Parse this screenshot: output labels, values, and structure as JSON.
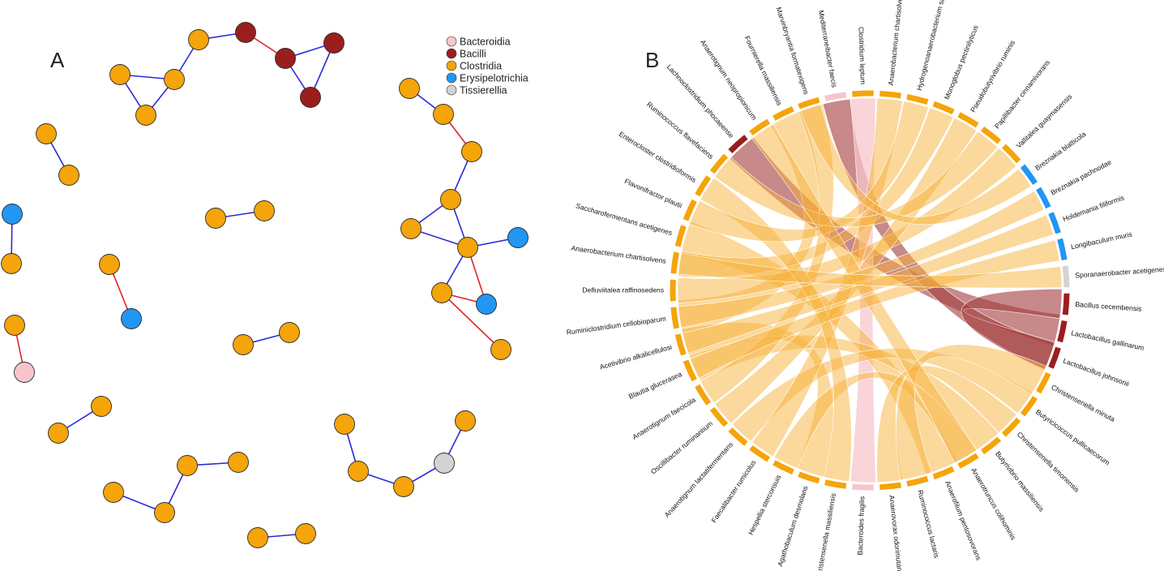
{
  "panels": {
    "a_label": "A",
    "b_label": "B"
  },
  "colors": {
    "Bacteroidia": "#F7C6CC",
    "Bacilli": "#9B1E1E",
    "Clostridia": "#F5A40A",
    "Erysipelotrichia": "#2196F3",
    "Tissierellia": "#D3D3D3",
    "edge_positive": "#2B2BD6",
    "edge_negative": "#E02424"
  },
  "legend": [
    {
      "name": "Bacteroidia",
      "color": "#F7C6CC"
    },
    {
      "name": "Bacilli",
      "color": "#9B1E1E"
    },
    {
      "name": "Clostridia",
      "color": "#F5A40A"
    },
    {
      "name": "Erysipelotrichia",
      "color": "#2196F3"
    },
    {
      "name": "Tissierellia",
      "color": "#D3D3D3"
    }
  ],
  "network": {
    "nodes": [
      {
        "id": "n1",
        "cls": "Clostridia"
      },
      {
        "id": "n2",
        "cls": "Bacilli"
      },
      {
        "id": "n3",
        "cls": "Clostridia"
      },
      {
        "id": "n4",
        "cls": "Clostridia"
      },
      {
        "id": "n5",
        "cls": "Clostridia"
      },
      {
        "id": "n6",
        "cls": "Bacilli"
      },
      {
        "id": "n7",
        "cls": "Bacilli"
      },
      {
        "id": "n8",
        "cls": "Bacilli"
      },
      {
        "id": "n9",
        "cls": "Clostridia"
      },
      {
        "id": "n10",
        "cls": "Clostridia"
      },
      {
        "id": "n11",
        "cls": "Erysipelotrichia"
      },
      {
        "id": "n12",
        "cls": "Clostridia"
      },
      {
        "id": "n13",
        "cls": "Clostridia"
      },
      {
        "id": "n14",
        "cls": "Clostridia"
      },
      {
        "id": "n15",
        "cls": "Clostridia"
      },
      {
        "id": "n16",
        "cls": "Erysipelotrichia"
      },
      {
        "id": "n17",
        "cls": "Clostridia"
      },
      {
        "id": "n18",
        "cls": "Bacteroidia"
      },
      {
        "id": "n19",
        "cls": "Clostridia"
      },
      {
        "id": "n20",
        "cls": "Clostridia"
      },
      {
        "id": "n21",
        "cls": "Clostridia"
      },
      {
        "id": "n22",
        "cls": "Clostridia"
      },
      {
        "id": "n23",
        "cls": "Clostridia"
      },
      {
        "id": "n24",
        "cls": "Clostridia"
      },
      {
        "id": "n25",
        "cls": "Clostridia"
      },
      {
        "id": "n26",
        "cls": "Clostridia"
      },
      {
        "id": "n27",
        "cls": "Clostridia"
      },
      {
        "id": "n28",
        "cls": "Clostridia"
      },
      {
        "id": "n29",
        "cls": "Clostridia"
      },
      {
        "id": "n30",
        "cls": "Clostridia"
      },
      {
        "id": "n31",
        "cls": "Clostridia"
      },
      {
        "id": "n32",
        "cls": "Clostridia"
      },
      {
        "id": "n33",
        "cls": "Clostridia"
      },
      {
        "id": "n34",
        "cls": "Clostridia"
      },
      {
        "id": "n35",
        "cls": "Erysipelotrichia"
      },
      {
        "id": "n36",
        "cls": "Clostridia"
      },
      {
        "id": "n37",
        "cls": "Erysipelotrichia"
      },
      {
        "id": "n38",
        "cls": "Clostridia"
      },
      {
        "id": "n39",
        "cls": "Clostridia"
      },
      {
        "id": "n40",
        "cls": "Clostridia"
      },
      {
        "id": "n41",
        "cls": "Clostridia"
      },
      {
        "id": "n42",
        "cls": "Tissierellia"
      },
      {
        "id": "n43",
        "cls": "Clostridia"
      }
    ],
    "edges": [
      {
        "s": "n1",
        "t": "n2",
        "sign": "positive"
      },
      {
        "s": "n1",
        "t": "n5",
        "sign": "positive"
      },
      {
        "s": "n2",
        "t": "n6",
        "sign": "negative"
      },
      {
        "s": "n3",
        "t": "n4",
        "sign": "positive"
      },
      {
        "s": "n3",
        "t": "n5",
        "sign": "positive"
      },
      {
        "s": "n4",
        "t": "n5",
        "sign": "positive"
      },
      {
        "s": "n6",
        "t": "n7",
        "sign": "positive"
      },
      {
        "s": "n6",
        "t": "n8",
        "sign": "positive"
      },
      {
        "s": "n7",
        "t": "n8",
        "sign": "positive"
      },
      {
        "s": "n9",
        "t": "n10",
        "sign": "positive"
      },
      {
        "s": "n11",
        "t": "n12",
        "sign": "positive"
      },
      {
        "s": "n13",
        "t": "n14",
        "sign": "positive"
      },
      {
        "s": "n15",
        "t": "n16",
        "sign": "negative"
      },
      {
        "s": "n17",
        "t": "n18",
        "sign": "negative"
      },
      {
        "s": "n19",
        "t": "n20",
        "sign": "positive"
      },
      {
        "s": "n21",
        "t": "n22",
        "sign": "positive"
      },
      {
        "s": "n23",
        "t": "n24",
        "sign": "positive"
      },
      {
        "s": "n24",
        "t": "n25",
        "sign": "positive"
      },
      {
        "s": "n25",
        "t": "n26",
        "sign": "positive"
      },
      {
        "s": "n27",
        "t": "n28",
        "sign": "positive"
      },
      {
        "s": "n29",
        "t": "n30",
        "sign": "positive"
      },
      {
        "s": "n30",
        "t": "n31",
        "sign": "negative"
      },
      {
        "s": "n31",
        "t": "n32",
        "sign": "positive"
      },
      {
        "s": "n32",
        "t": "n33",
        "sign": "positive"
      },
      {
        "s": "n32",
        "t": "n34",
        "sign": "positive"
      },
      {
        "s": "n33",
        "t": "n34",
        "sign": "positive"
      },
      {
        "s": "n34",
        "t": "n35",
        "sign": "positive"
      },
      {
        "s": "n34",
        "t": "n36",
        "sign": "positive"
      },
      {
        "s": "n34",
        "t": "n37",
        "sign": "negative"
      },
      {
        "s": "n36",
        "t": "n37",
        "sign": "negative"
      },
      {
        "s": "n36",
        "t": "n38",
        "sign": "negative"
      },
      {
        "s": "n39",
        "t": "n40",
        "sign": "positive"
      },
      {
        "s": "n40",
        "t": "n41",
        "sign": "positive"
      },
      {
        "s": "n41",
        "t": "n42",
        "sign": "positive"
      },
      {
        "s": "n42",
        "t": "n43",
        "sign": "positive"
      }
    ]
  },
  "chord": {
    "species": [
      {
        "name": "Bacillus cecembensis",
        "cls": "Bacilli"
      },
      {
        "name": "Lactobacillus gallinarum",
        "cls": "Bacilli"
      },
      {
        "name": "Lactobacillus johnsonii",
        "cls": "Bacilli"
      },
      {
        "name": "Christensenella minuta",
        "cls": "Clostridia"
      },
      {
        "name": "Butyricicoccus pullicaecorum",
        "cls": "Clostridia"
      },
      {
        "name": "Christensenella timonensis",
        "cls": "Clostridia"
      },
      {
        "name": "Butyrivibrio massiliensis",
        "cls": "Clostridia"
      },
      {
        "name": "Anaerotruncus colihominis",
        "cls": "Clostridia"
      },
      {
        "name": "Anaerofilum pentosovorans",
        "cls": "Clostridia"
      },
      {
        "name": "Ruminococcus lactaris",
        "cls": "Clostridia"
      },
      {
        "name": "Anaerovorax odorimutans",
        "cls": "Clostridia"
      },
      {
        "name": "Bacteroides fragilis",
        "cls": "Bacteroidia"
      },
      {
        "name": "Christensenella massiliensis",
        "cls": "Clostridia"
      },
      {
        "name": "Agathobaculum desmolans",
        "cls": "Clostridia"
      },
      {
        "name": "Hespellia stercorisuis",
        "cls": "Clostridia"
      },
      {
        "name": "Faecalibacter rumicolus",
        "cls": "Clostridia"
      },
      {
        "name": "Anaerotignum lactatifermentans",
        "cls": "Clostridia"
      },
      {
        "name": "Oscillibacter ruminantium",
        "cls": "Clostridia"
      },
      {
        "name": "Anaerotignum faecicola",
        "cls": "Clostridia"
      },
      {
        "name": "Blautia glucerasea",
        "cls": "Clostridia"
      },
      {
        "name": "Acetivibrio alkalicellulosi",
        "cls": "Clostridia"
      },
      {
        "name": "Ruminiclostridium cellobioparum",
        "cls": "Clostridia"
      },
      {
        "name": "Defluviitalea raffinosedens",
        "cls": "Clostridia"
      },
      {
        "name": "Anaerobacterium chartisolvens",
        "cls": "Clostridia"
      },
      {
        "name": "Saccharofermentans acetigenes",
        "cls": "Clostridia"
      },
      {
        "name": "Flavonifractor plautii",
        "cls": "Clostridia"
      },
      {
        "name": "Enterocloster clostridioformis",
        "cls": "Clostridia"
      },
      {
        "name": "Ruminococcus flavefaciens",
        "cls": "Clostridia"
      },
      {
        "name": "Lachnoclostridium phocaeense",
        "cls": "Bacilli"
      },
      {
        "name": "Anaerotignum neopropionicum",
        "cls": "Clostridia"
      },
      {
        "name": "Fournierella massiliensis",
        "cls": "Clostridia"
      },
      {
        "name": "Marvinbryantia formatexigens",
        "cls": "Clostridia"
      },
      {
        "name": "Mediterraneibacter faecis",
        "cls": "Bacteroidia"
      },
      {
        "name": "Clostridium leptum",
        "cls": "Clostridia"
      },
      {
        "name": "Anaerobacterium chartisolvens",
        "cls": "Clostridia"
      },
      {
        "name": "Hydrogenoanaerobacterium saccharovorans",
        "cls": "Clostridia"
      },
      {
        "name": "Monoglobus pectinilyticus",
        "cls": "Clostridia"
      },
      {
        "name": "Pseudobutyrivibrio ruminis",
        "cls": "Clostridia"
      },
      {
        "name": "Papillibacter cinnamivorans",
        "cls": "Clostridia"
      },
      {
        "name": "Vallitalea guaymasensis",
        "cls": "Clostridia"
      },
      {
        "name": "Breznakia blatticola",
        "cls": "Erysipelotrichia"
      },
      {
        "name": "Breznakia pachnodae",
        "cls": "Erysipelotrichia"
      },
      {
        "name": "Holdemania filiformis",
        "cls": "Erysipelotrichia"
      },
      {
        "name": "Longibaculum muris",
        "cls": "Erysipelotrichia"
      },
      {
        "name": "Sporanaerobacter acetigenes",
        "cls": "Tissierellia"
      }
    ],
    "links": [
      {
        "a": 28,
        "b": 1,
        "w": 0.8,
        "cls": "Bacilli"
      },
      {
        "a": 32,
        "b": 2,
        "w": 0.6,
        "cls": "Bacilli"
      },
      {
        "a": 33,
        "b": 11,
        "w": 0.5,
        "cls": "Bacteroidia"
      },
      {
        "a": 0,
        "b": 2,
        "w": 0.7,
        "cls": "Bacilli"
      },
      {
        "a": 24,
        "b": 8,
        "w": 0.9,
        "cls": "Clostridia"
      },
      {
        "a": 21,
        "b": 30,
        "w": 0.9,
        "cls": "Clostridia"
      },
      {
        "a": 23,
        "b": 36,
        "w": 0.5,
        "cls": "Clostridia"
      },
      {
        "a": 22,
        "b": 39,
        "w": 0.5,
        "cls": "Clostridia"
      },
      {
        "a": 20,
        "b": 13,
        "w": 0.7,
        "cls": "Clostridia"
      },
      {
        "a": 19,
        "b": 6,
        "w": 0.6,
        "cls": "Clostridia"
      },
      {
        "a": 18,
        "b": 31,
        "w": 0.5,
        "cls": "Clostridia"
      },
      {
        "a": 17,
        "b": 37,
        "w": 0.5,
        "cls": "Clostridia"
      },
      {
        "a": 16,
        "b": 4,
        "w": 0.5,
        "cls": "Clostridia"
      },
      {
        "a": 15,
        "b": 34,
        "w": 0.5,
        "cls": "Clostridia"
      },
      {
        "a": 14,
        "b": 7,
        "w": 0.5,
        "cls": "Clostridia"
      },
      {
        "a": 12,
        "b": 26,
        "w": 0.5,
        "cls": "Clostridia"
      },
      {
        "a": 10,
        "b": 5,
        "w": 0.5,
        "cls": "Clostridia"
      },
      {
        "a": 9,
        "b": 3,
        "w": 0.8,
        "cls": "Clostridia"
      },
      {
        "a": 25,
        "b": 35,
        "w": 0.5,
        "cls": "Clostridia"
      },
      {
        "a": 27,
        "b": 38,
        "w": 0.5,
        "cls": "Clostridia"
      },
      {
        "a": 29,
        "b": 7,
        "w": 0.5,
        "cls": "Clostridia"
      },
      {
        "a": 40,
        "b": 31,
        "w": 0.3,
        "cls": "Clostridia"
      },
      {
        "a": 41,
        "b": 21,
        "w": 0.3,
        "cls": "Clostridia"
      },
      {
        "a": 42,
        "b": 20,
        "w": 0.3,
        "cls": "Clostridia"
      },
      {
        "a": 43,
        "b": 19,
        "w": 0.3,
        "cls": "Clostridia"
      },
      {
        "a": 44,
        "b": 23,
        "w": 0.3,
        "cls": "Clostridia"
      }
    ]
  }
}
